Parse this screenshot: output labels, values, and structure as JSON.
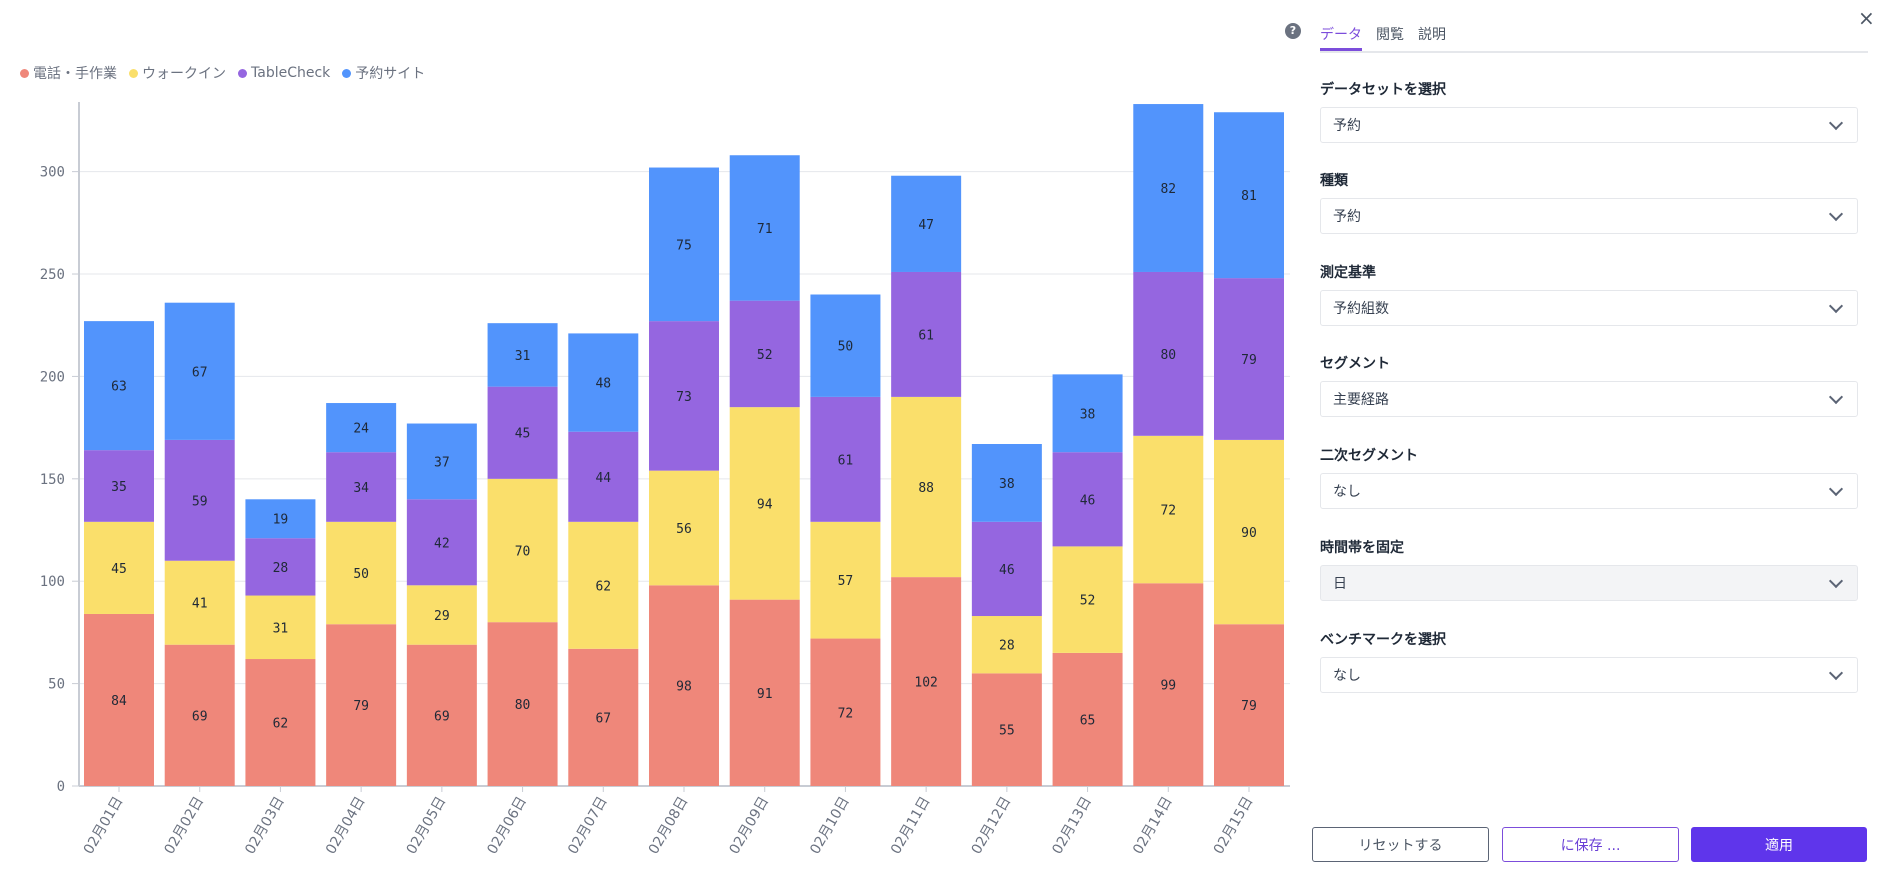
{
  "chart_data": {
    "type": "bar",
    "stacked": true,
    "categories": [
      "02月01日",
      "02月02日",
      "02月03日",
      "02月04日",
      "02月05日",
      "02月06日",
      "02月07日",
      "02月08日",
      "02月09日",
      "02月10日",
      "02月11日",
      "02月12日",
      "02月13日",
      "02月14日",
      "02月15日"
    ],
    "series": [
      {
        "name": "電話・手作業",
        "color": "#ef877a",
        "values": [
          84,
          69,
          62,
          79,
          69,
          80,
          67,
          98,
          91,
          72,
          102,
          55,
          65,
          99,
          79
        ]
      },
      {
        "name": "ウォークイン",
        "color": "#fadf6b",
        "values": [
          45,
          41,
          31,
          50,
          29,
          70,
          62,
          56,
          94,
          57,
          88,
          28,
          52,
          72,
          90
        ]
      },
      {
        "name": "TableCheck",
        "color": "#9566e0",
        "values": [
          35,
          59,
          28,
          34,
          42,
          45,
          44,
          73,
          52,
          61,
          61,
          46,
          46,
          80,
          79
        ]
      },
      {
        "name": "予約サイト",
        "color": "#5294fc",
        "values": [
          63,
          67,
          19,
          24,
          37,
          31,
          48,
          75,
          71,
          50,
          47,
          38,
          38,
          82,
          81
        ]
      }
    ],
    "yticks": [
      0,
      50,
      100,
      150,
      200,
      250,
      300
    ],
    "ylim": [
      0,
      334
    ],
    "xlabel": "",
    "ylabel": "",
    "title": "",
    "grid": true,
    "legend": "top-left",
    "data_labels": true
  },
  "panel": {
    "help_icon": "?",
    "close_icon": "×",
    "tabs": [
      {
        "label": "データ",
        "active": true
      },
      {
        "label": "閲覧",
        "active": false
      },
      {
        "label": "説明",
        "active": false
      }
    ],
    "fields": [
      {
        "label": "データセットを選択",
        "value": "予約",
        "disabled": false
      },
      {
        "label": "種類",
        "value": "予約",
        "disabled": false
      },
      {
        "label": "測定基準",
        "value": "予約組数",
        "disabled": false
      },
      {
        "label": "セグメント",
        "value": "主要経路",
        "disabled": false
      },
      {
        "label": "二次セグメント",
        "value": "なし",
        "disabled": false
      },
      {
        "label": "時間帯を固定",
        "value": "日",
        "disabled": true
      },
      {
        "label": "ベンチマークを選択",
        "value": "なし",
        "disabled": false
      }
    ],
    "buttons": {
      "reset": "リセットする",
      "save": "に保存 ...",
      "apply": "適用"
    }
  }
}
